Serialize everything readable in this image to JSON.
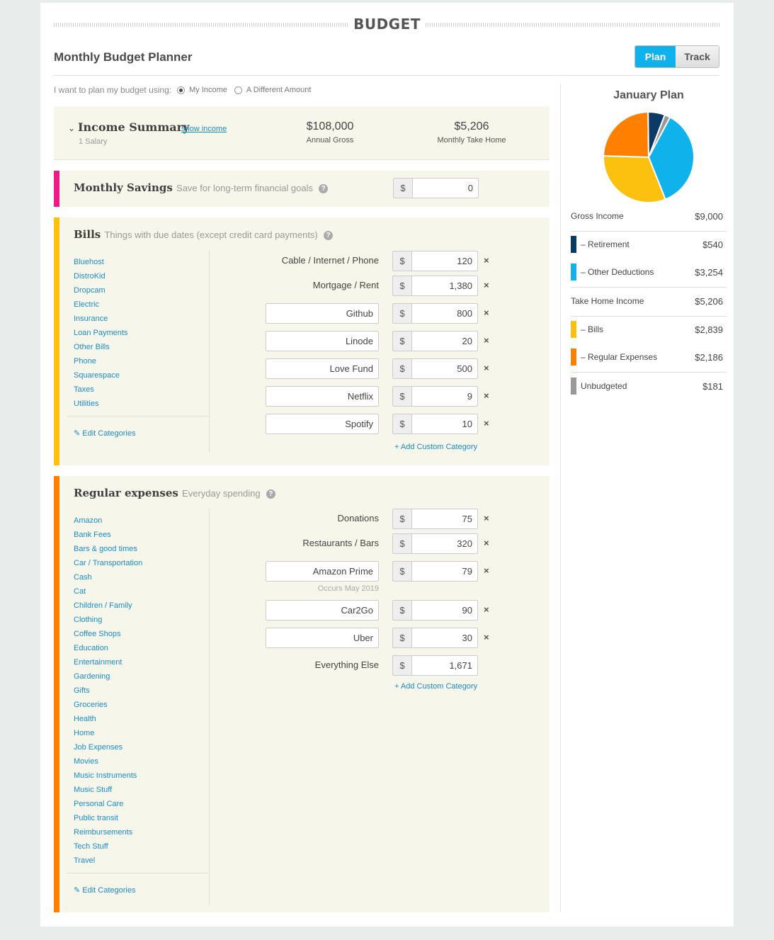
{
  "header": {
    "brand": "BUDGET",
    "title": "Monthly Budget Planner",
    "tab_plan": "Plan",
    "tab_track": "Track"
  },
  "plan_using": {
    "prompt": "I want to plan my budget using:",
    "option_1": "My Income",
    "option_2": "A Different Amount",
    "selected": "My Income"
  },
  "income_summary": {
    "title": "Income Summary",
    "link": "show income",
    "subtitle": "1 Salary",
    "annual_gross_value": "$108,000",
    "annual_gross_label": "Annual Gross",
    "take_home_value": "$5,206",
    "take_home_label": "Monthly Take Home"
  },
  "savings": {
    "title": "Monthly Savings",
    "subtitle": "Save for long-term financial goals",
    "help": "?",
    "currency": "$",
    "amount": "0",
    "color": "#ec1b85"
  },
  "bills": {
    "title": "Bills",
    "subtitle": "Things with due dates (except credit card payments)",
    "help": "?",
    "color": "#fcc10f",
    "categories": [
      "Bluehost",
      "DistroKid",
      "Dropcam",
      "Electric",
      "Insurance",
      "Loan Payments",
      "Other Bills",
      "Phone",
      "Squarespace",
      "Taxes",
      "Utilities"
    ],
    "edit_label": "Edit Categories",
    "rows": [
      {
        "label": "Cable / Internet / Phone",
        "custom": false,
        "amount": "120"
      },
      {
        "label": "Mortgage / Rent",
        "custom": false,
        "amount": "1,380"
      },
      {
        "label": "Github",
        "custom": true,
        "amount": "800"
      },
      {
        "label": "Linode",
        "custom": true,
        "amount": "20"
      },
      {
        "label": "Love Fund",
        "custom": true,
        "amount": "500"
      },
      {
        "label": "Netflix",
        "custom": true,
        "amount": "9"
      },
      {
        "label": "Spotify",
        "custom": true,
        "amount": "10"
      }
    ],
    "add_label": "+ Add Custom Category"
  },
  "expenses": {
    "title": "Regular expenses",
    "subtitle": "Everyday spending",
    "help": "?",
    "color": "#ff7f00",
    "categories": [
      "Amazon",
      "Bank Fees",
      "Bars & good times",
      "Car / Transportation",
      "Cash",
      "Cat",
      "Children / Family",
      "Clothing",
      "Coffee Shops",
      "Education",
      "Entertainment",
      "Gardening",
      "Gifts",
      "Groceries",
      "Health",
      "Home",
      "Job Expenses",
      "Movies",
      "Music Instruments",
      "Music Stuff",
      "Personal Care",
      "Public transit",
      "Reimbursements",
      "Tech Stuff",
      "Travel"
    ],
    "edit_label": "Edit Categories",
    "rows": [
      {
        "label": "Donations",
        "custom": false,
        "amount": "75",
        "removable": true
      },
      {
        "label": "Restaurants / Bars",
        "custom": false,
        "amount": "320",
        "removable": true
      },
      {
        "label": "Amazon Prime",
        "custom": true,
        "amount": "79",
        "removable": true,
        "note": "Occurs May 2019"
      },
      {
        "label": "Car2Go",
        "custom": true,
        "amount": "90",
        "removable": true
      },
      {
        "label": "Uber",
        "custom": true,
        "amount": "30",
        "removable": true
      },
      {
        "label": "Everything Else",
        "custom": false,
        "amount": "1,671",
        "removable": false
      }
    ],
    "add_label": "+ Add Custom Category"
  },
  "currency_symbol": "$",
  "remove_symbol": "×",
  "sidebar": {
    "title": "January Plan",
    "gross_label": "Gross Income",
    "gross_value": "$9,000",
    "retirement_label": "– Retirement",
    "retirement_value": "$540",
    "other_label": "– Other Deductions",
    "other_value": "$3,254",
    "takehome_label": "Take Home Income",
    "takehome_value": "$5,206",
    "bills_label": "– Bills",
    "bills_value": "$2,839",
    "regular_label": "– Regular Expenses",
    "regular_value": "$2,186",
    "unbudgeted_label": "Unbudgeted",
    "unbudgeted_value": "$181"
  },
  "chart_data": {
    "type": "pie",
    "title": "January Plan",
    "slices": [
      {
        "name": "Other Deductions",
        "value": 3254,
        "color": "#10b2ec"
      },
      {
        "name": "Bills",
        "value": 2839,
        "color": "#fcc10f"
      },
      {
        "name": "Regular Expenses",
        "value": 2186,
        "color": "#ff7f00"
      },
      {
        "name": "Retirement",
        "value": 540,
        "color": "#0b3a66"
      },
      {
        "name": "Unbudgeted",
        "value": 181,
        "color": "#999999"
      }
    ]
  }
}
